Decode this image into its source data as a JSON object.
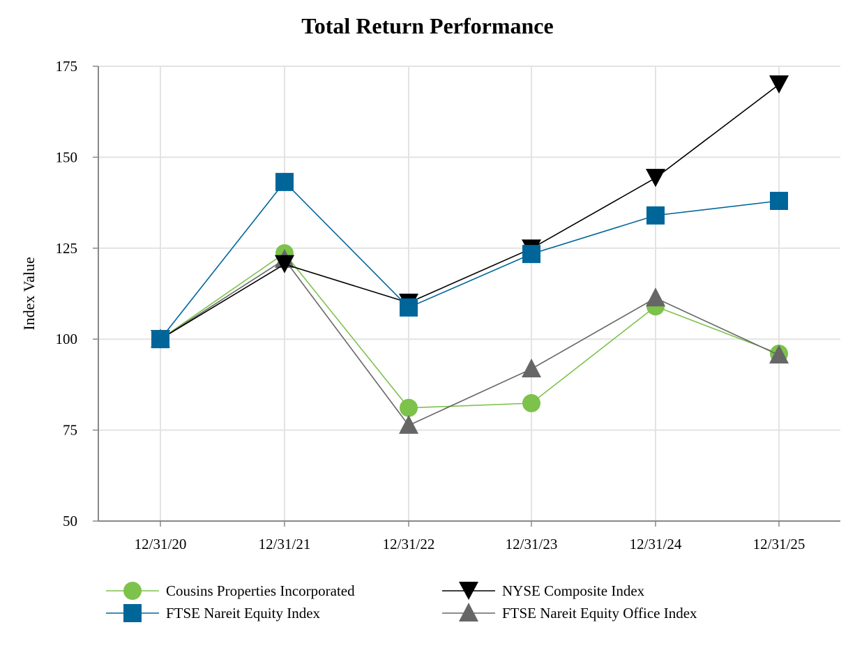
{
  "chart_data": {
    "type": "line",
    "title": "Total Return Performance",
    "xlabel": "",
    "ylabel": "Index Value",
    "ylim": [
      50,
      175
    ],
    "yticks": [
      50,
      75,
      100,
      125,
      150,
      175
    ],
    "grid": true,
    "legend_placement": "bottom",
    "categories": [
      "12/31/20",
      "12/31/21",
      "12/31/22",
      "12/31/23",
      "12/31/24",
      "12/31/25"
    ],
    "series": [
      {
        "name": "Cousins Properties Incorporated",
        "color": "#7dc24b",
        "marker": "circle",
        "values": [
          100,
          123.6,
          81.1,
          82.4,
          109.0,
          96.0
        ]
      },
      {
        "name": "NYSE Composite Index",
        "color": "#000000",
        "marker": "triangle-down",
        "values": [
          100,
          120.6,
          110.0,
          124.9,
          144.3,
          170.0
        ]
      },
      {
        "name": "FTSE Nareit Equity Index",
        "color": "#00669a",
        "marker": "square",
        "values": [
          100,
          143.2,
          108.7,
          123.4,
          134.0,
          138.0
        ]
      },
      {
        "name": "FTSE Nareit Equity Office Index",
        "color": "#666666",
        "marker": "triangle-up",
        "values": [
          100,
          121.9,
          76.3,
          91.8,
          111.3,
          95.6
        ]
      }
    ]
  }
}
